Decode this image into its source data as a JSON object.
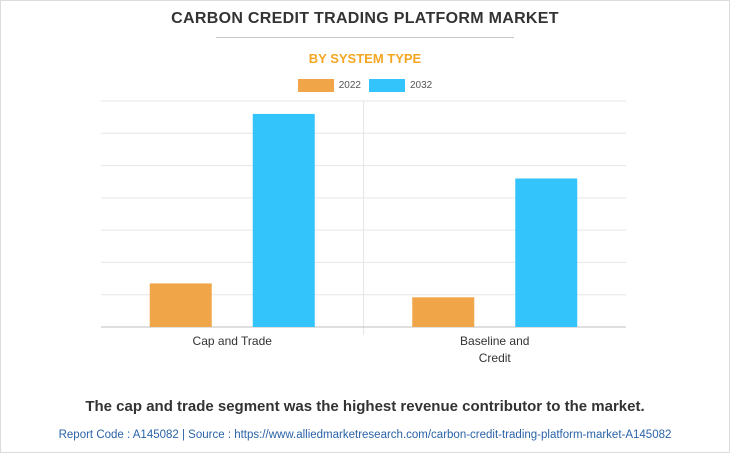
{
  "title": "CARBON CREDIT TRADING PLATFORM MARKET",
  "subtitle": "BY SYSTEM TYPE",
  "colors": {
    "subtitle": "#f5a623",
    "series_2022": "#f0a548",
    "series_2032": "#33c4fc",
    "grid": "#e6e6e6",
    "axis": "#bfbfbf"
  },
  "footnote": "The cap and trade segment was the highest revenue contributor to the market.",
  "report_line": "Report Code : A145082  |  Source : https://www.alliedmarketresearch.com/carbon-credit-trading-platform-market-A145082",
  "chart_data": {
    "type": "bar",
    "categories": [
      [
        "Cap and Trade"
      ],
      [
        "Baseline and",
        "Credit"
      ]
    ],
    "series": [
      {
        "name": "2022",
        "values": [
          1.35,
          0.92
        ]
      },
      {
        "name": "2032",
        "values": [
          6.6,
          4.6
        ]
      }
    ],
    "ylim": [
      0,
      7
    ],
    "gridlines": 7,
    "grid": true,
    "legend_position": "top",
    "xlabel": "",
    "ylabel": ""
  }
}
